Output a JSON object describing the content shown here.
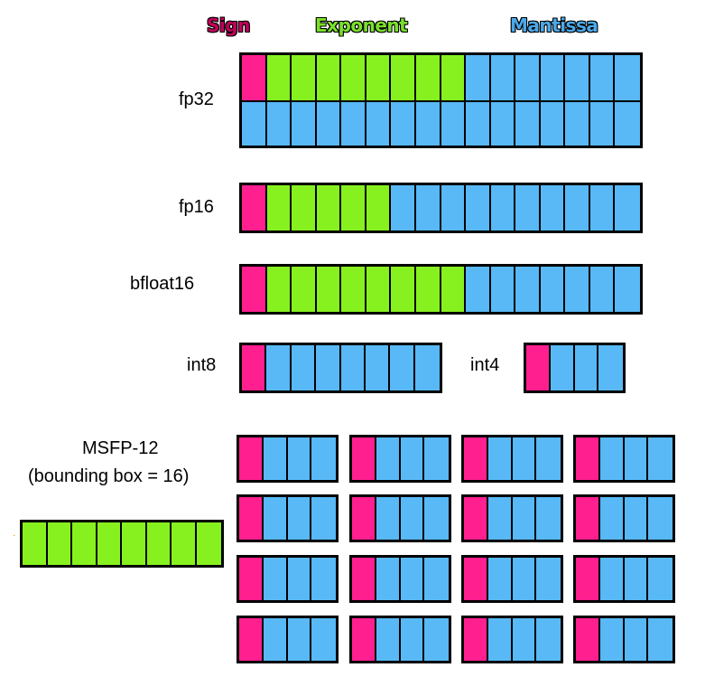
{
  "legend": {
    "sign": "Sign",
    "exponent": "Exponent",
    "mantissa": "Mantissa"
  },
  "colors": {
    "sign": "#ff1f8f",
    "exponent": "#87f11f",
    "mantissa": "#58b9f6",
    "sign_text": "#c2005a",
    "exponent_text": "#7ae02a",
    "mantissa_text": "#4aa9ea"
  },
  "formats": {
    "fp32": {
      "label": "fp32",
      "row1": [
        "s",
        "e",
        "e",
        "e",
        "e",
        "e",
        "e",
        "e",
        "e",
        "m",
        "m",
        "m",
        "m",
        "m",
        "m",
        "m"
      ],
      "row2": [
        "m",
        "m",
        "m",
        "m",
        "m",
        "m",
        "m",
        "m",
        "m",
        "m",
        "m",
        "m",
        "m",
        "m",
        "m",
        "m"
      ]
    },
    "fp16": {
      "label": "fp16",
      "cells": [
        "s",
        "e",
        "e",
        "e",
        "e",
        "e",
        "m",
        "m",
        "m",
        "m",
        "m",
        "m",
        "m",
        "m",
        "m",
        "m"
      ]
    },
    "bfloat16": {
      "label": "bfloat16",
      "cells": [
        "s",
        "e",
        "e",
        "e",
        "e",
        "e",
        "e",
        "e",
        "e",
        "m",
        "m",
        "m",
        "m",
        "m",
        "m",
        "m"
      ]
    },
    "int8": {
      "label": "int8",
      "cells": [
        "s",
        "m",
        "m",
        "m",
        "m",
        "m",
        "m",
        "m"
      ]
    },
    "int4": {
      "label": "int4",
      "cells": [
        "s",
        "m",
        "m",
        "m"
      ]
    }
  },
  "msfp": {
    "label_line1": "MSFP-12",
    "label_line2": "(bounding box = 16)",
    "shared_exponent": [
      "e",
      "e",
      "e",
      "e",
      "e",
      "e",
      "e",
      "e"
    ],
    "element": [
      "s",
      "m",
      "m",
      "m"
    ],
    "grid_rows": 4,
    "grid_cols": 4
  }
}
